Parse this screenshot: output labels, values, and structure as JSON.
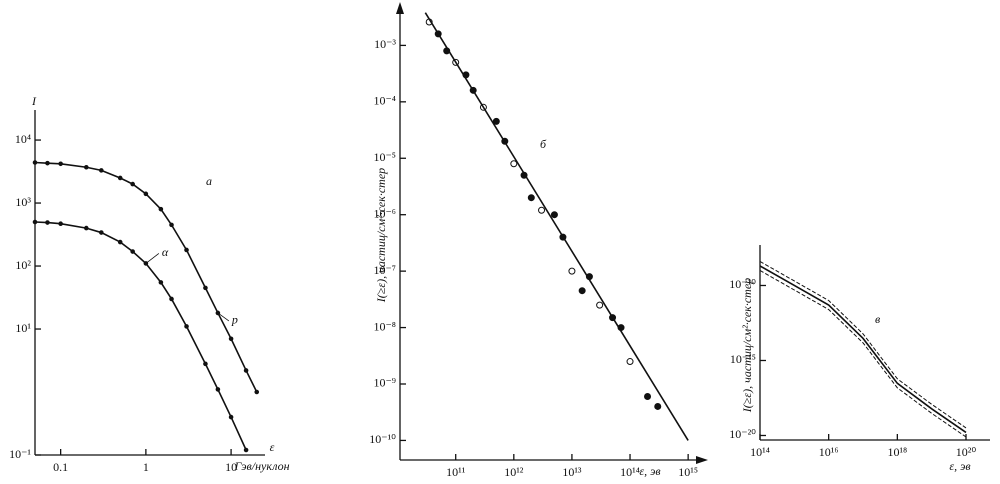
{
  "chart_data": [
    {
      "type": "line",
      "panel_label": "а",
      "y_label": "I",
      "x_label": "ε",
      "x_unit": "Гэв/нуклон",
      "xscale": "log",
      "yscale": "log",
      "xlim": [
        0.05,
        25
      ],
      "xticks": [
        0.1,
        1,
        10
      ],
      "ylim": [
        0.1,
        30000
      ],
      "yticks": [
        {
          "value": 10000,
          "label": "10⁴"
        },
        {
          "value": 1000,
          "label": "10³"
        },
        {
          "value": 100,
          "label": "10²"
        },
        {
          "value": 10,
          "label": "10¹"
        },
        {
          "value": 0.1,
          "label": "10⁻¹"
        }
      ],
      "series": [
        {
          "name": "p",
          "color": "#111111",
          "style": "solid",
          "markers": true,
          "x": [
            0.05,
            0.07,
            0.1,
            0.2,
            0.3,
            0.5,
            0.7,
            1,
            1.5,
            2,
            3,
            5,
            7,
            10,
            15,
            20
          ],
          "values": [
            4400,
            4300,
            4200,
            3700,
            3300,
            2500,
            2000,
            1400,
            800,
            450,
            180,
            45,
            18,
            7,
            2.2,
            1
          ]
        },
        {
          "name": "α",
          "color": "#111111",
          "style": "solid",
          "markers": true,
          "x": [
            0.05,
            0.07,
            0.1,
            0.2,
            0.3,
            0.5,
            0.7,
            1,
            1.5,
            2,
            3,
            5,
            7,
            10,
            15
          ],
          "values": [
            500,
            490,
            470,
            400,
            340,
            240,
            170,
            110,
            55,
            30,
            11,
            2.8,
            1.1,
            0.4,
            0.12
          ]
        }
      ]
    },
    {
      "type": "scatter",
      "panel_label": "б",
      "y_label": "I(≥ε), частиц/см²·сек·стер",
      "x_label": "ε, эв",
      "xscale": "log",
      "yscale": "log",
      "xlim": [
        11000000000.0,
        1600000000000000.0
      ],
      "xticks": [
        {
          "value": 100000000000.0,
          "label": "10¹¹"
        },
        {
          "value": 1000000000000.0,
          "label": "10¹²"
        },
        {
          "value": 10000000000000.0,
          "label": "10¹³"
        },
        {
          "value": 100000000000000.0,
          "label": "10¹⁴"
        },
        {
          "value": 1000000000000000.0,
          "label": "10¹⁵"
        }
      ],
      "ylim": [
        4.5e-11,
        0.0046
      ],
      "yticks": [
        {
          "value": 0.001,
          "label": "10⁻³"
        },
        {
          "value": 0.0001,
          "label": "10⁻⁴"
        },
        {
          "value": 1e-05,
          "label": "10⁻⁵"
        },
        {
          "value": 1e-06,
          "label": "10⁻⁶"
        },
        {
          "value": 1e-07,
          "label": "10⁻⁷"
        },
        {
          "value": 1e-08,
          "label": "10⁻⁸"
        },
        {
          "value": 1e-09,
          "label": "10⁻⁹"
        },
        {
          "value": 1e-10,
          "label": "10⁻¹⁰"
        }
      ],
      "series": [
        {
          "color": "#111111",
          "style": "points",
          "x": [
            35000000000.0,
            50000000000.0,
            70000000000.0,
            100000000000.0,
            150000000000.0,
            200000000000.0,
            300000000000.0,
            500000000000.0,
            700000000000.0,
            1000000000000.0,
            1500000000000.0,
            2000000000000.0,
            3000000000000.0,
            5000000000000.0,
            7000000000000.0,
            10000000000000.0,
            15000000000000.0,
            20000000000000.0,
            30000000000000.0,
            50000000000000.0,
            70000000000000.0,
            100000000000000.0,
            200000000000000.0,
            300000000000000.0
          ],
          "values": [
            0.0026,
            0.0016,
            0.0008,
            0.0005,
            0.0003,
            0.00016,
            8e-05,
            4.5e-05,
            2e-05,
            8e-06,
            5e-06,
            2e-06,
            1.2e-06,
            1e-06,
            4e-07,
            1e-07,
            4.5e-08,
            8e-08,
            2.5e-08,
            1.5e-08,
            1e-08,
            2.5e-09,
            6e-10,
            4e-10
          ]
        },
        {
          "color": "#111111",
          "style": "solid",
          "x": [
            30000000000.0,
            1000000000000000.0
          ],
          "values": [
            0.0038,
            1e-10
          ]
        }
      ]
    },
    {
      "type": "line",
      "panel_label": "в",
      "y_label": "I(≥ε), частиц/см²·сек·стер",
      "x_label": "ε, эв",
      "xscale": "log",
      "yscale": "log",
      "xlim": [
        100000000000000.0,
        5e+20
      ],
      "xticks": [
        {
          "value": 100000000000000.0,
          "label": "10¹⁴"
        },
        {
          "value": 1e+16,
          "label": "10¹⁶"
        },
        {
          "value": 1e+18,
          "label": "10¹⁸"
        },
        {
          "value": 1e+20,
          "label": "10²⁰"
        }
      ],
      "ylim": [
        5e-21,
        5e-08
      ],
      "yticks": [
        {
          "value": 1e-10,
          "label": "10⁻¹⁰"
        },
        {
          "value": 1e-15,
          "label": "10⁻¹⁵"
        },
        {
          "value": 1e-20,
          "label": "10⁻²⁰"
        }
      ],
      "series": [
        {
          "color": "#111111",
          "style": "dashed",
          "x": [
            100000000000000.0,
            1000000000000000.0,
            1e+16,
            1e+17,
            1e+18,
            1e+19,
            1e+20
          ],
          "values": [
            4e-09,
            2e-10,
            1e-11,
            6e-14,
            6e-17,
            1.2e-18,
            3.2e-20
          ]
        },
        {
          "color": "#111111",
          "style": "solid",
          "x": [
            100000000000000.0,
            1000000000000000.0,
            1e+16,
            1e+17,
            1e+18,
            1e+19,
            1e+20
          ],
          "values": [
            2e-09,
            1e-10,
            5e-12,
            3e-14,
            3e-17,
            6e-19,
            1.6e-20
          ]
        },
        {
          "color": "#111111",
          "style": "dashed",
          "x": [
            100000000000000.0,
            1000000000000000.0,
            1e+16,
            1e+17,
            1e+18,
            1e+19,
            1e+20
          ],
          "values": [
            1e-09,
            5e-11,
            2.5e-12,
            1.5e-14,
            1.5e-17,
            3e-19,
            8e-21
          ]
        }
      ]
    }
  ]
}
